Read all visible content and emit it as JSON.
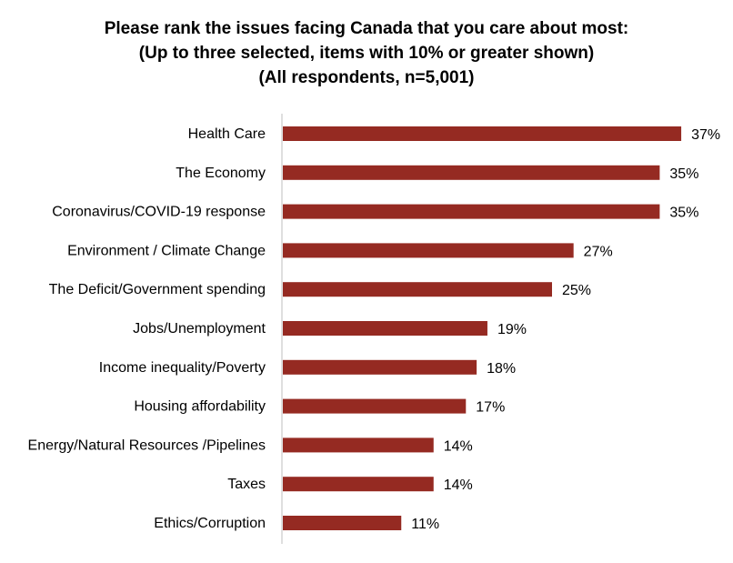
{
  "chart_data": {
    "type": "bar",
    "orientation": "horizontal",
    "title": [
      "Please rank the issues facing Canada that you care about most:",
      "(Up to three selected, items with 10% or greater shown)",
      "(All respondents, n=5,001)"
    ],
    "categories": [
      "Health Care",
      "The Economy",
      "Coronavirus/COVID-19 response",
      "Environment / Climate Change",
      "The Deficit/Government spending",
      "Jobs/Unemployment",
      "Income inequality/Poverty",
      "Housing affordability",
      "Energy/Natural Resources /Pipelines",
      "Taxes",
      "Ethics/Corruption"
    ],
    "values": [
      37,
      35,
      35,
      27,
      25,
      19,
      18,
      17,
      14,
      14,
      11
    ],
    "value_labels": [
      "37%",
      "35%",
      "35%",
      "27%",
      "25%",
      "19%",
      "18%",
      "17%",
      "14%",
      "14%",
      "11%"
    ],
    "bar_color": "#952A22",
    "axis_color": "#BFBFBF",
    "grid": false
  }
}
